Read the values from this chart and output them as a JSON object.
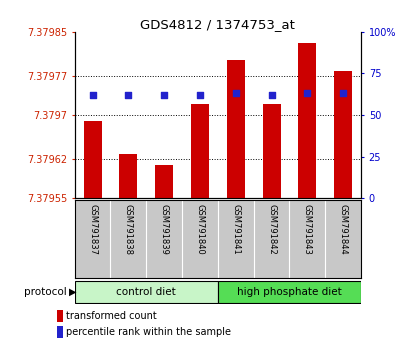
{
  "title": "GDS4812 / 1374753_at",
  "samples": [
    "GSM791837",
    "GSM791838",
    "GSM791839",
    "GSM791840",
    "GSM791841",
    "GSM791842",
    "GSM791843",
    "GSM791844"
  ],
  "transformed_counts": [
    7.37969,
    7.37963,
    7.37961,
    7.37972,
    7.3798,
    7.37972,
    7.37983,
    7.37978
  ],
  "percentile_ranks": [
    62,
    62,
    62,
    62,
    63,
    62,
    63,
    63
  ],
  "ylim_left": [
    7.37955,
    7.37985
  ],
  "ylim_right": [
    0,
    100
  ],
  "yticks_left": [
    7.37955,
    7.37962,
    7.3797,
    7.37977,
    7.37985
  ],
  "yticks_right": [
    0,
    25,
    50,
    75,
    100
  ],
  "ytick_labels_left": [
    "7.37955",
    "7.37962",
    "7.3797",
    "7.37977",
    "7.37985"
  ],
  "ytick_labels_right": [
    "0",
    "25",
    "50",
    "75",
    "100%"
  ],
  "bar_color": "#cc0000",
  "dot_color": "#2222cc",
  "label_color_left": "#cc2200",
  "label_color_right": "#0000cc",
  "background_color": "#ffffff",
  "plot_bg_color": "#ffffff",
  "sample_area_color": "#c8c8c8",
  "group_colors": [
    "#c8f5c8",
    "#55dd55"
  ],
  "group_labels": [
    "control diet",
    "high phosphate diet"
  ],
  "group_splits": [
    0,
    4,
    8
  ],
  "legend_items": [
    {
      "color": "#cc0000",
      "label": "transformed count"
    },
    {
      "color": "#2222cc",
      "label": "percentile rank within the sample"
    }
  ]
}
